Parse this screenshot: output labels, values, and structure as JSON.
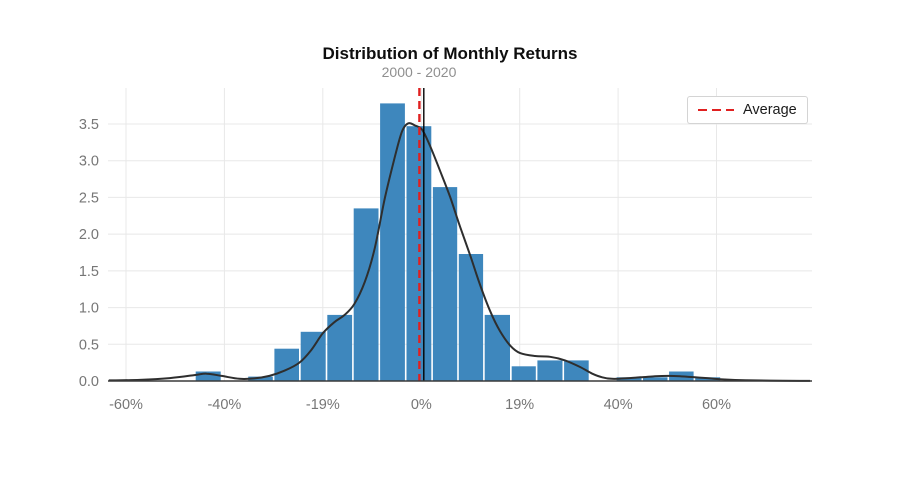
{
  "chart_data": {
    "type": "bar",
    "subtype": "histogram_with_kde",
    "title": "Distribution of Monthly Returns",
    "subtitle": "2000 - 2020",
    "xlabel": "",
    "ylabel": "",
    "grid": true,
    "ylim": [
      0,
      3.95
    ],
    "x_axis": {
      "tick_values": [
        -60,
        -40,
        -19,
        0,
        19,
        40,
        60
      ],
      "tick_labels": [
        "-60%",
        "-40%",
        "-19%",
        "0%",
        "19%",
        "40%",
        "60%"
      ]
    },
    "y_axis": {
      "tick_values": [
        0,
        0.5,
        1,
        1.5,
        2,
        2.5,
        3,
        3.5
      ],
      "tick_labels": [
        "0.0",
        "0.5",
        "1.0",
        "1.5",
        "2.0",
        "2.5",
        "3.0",
        "3.5"
      ]
    },
    "legend": {
      "position": "upper-right",
      "entries": [
        {
          "label": "Average",
          "style": "dashed",
          "color": "#e02020"
        }
      ]
    },
    "bars": {
      "color": "#3e87bd",
      "bins": [
        {
          "from": -46.0,
          "to": -40.6,
          "height": 0.13
        },
        {
          "from": -35.1,
          "to": -29.5,
          "height": 0.06
        },
        {
          "from": -29.5,
          "to": -23.9,
          "height": 0.44
        },
        {
          "from": -23.9,
          "to": -18.3,
          "height": 0.67
        },
        {
          "from": -18.3,
          "to": -13.2,
          "height": 0.9
        },
        {
          "from": -13.2,
          "to": -8.1,
          "height": 2.35
        },
        {
          "from": -8.1,
          "to": -3.0,
          "height": 3.78
        },
        {
          "from": -3.0,
          "to": 2.1,
          "height": 3.47
        },
        {
          "from": 2.1,
          "to": 7.1,
          "height": 2.64
        },
        {
          "from": 7.1,
          "to": 12.1,
          "height": 1.73
        },
        {
          "from": 12.1,
          "to": 17.3,
          "height": 0.9
        },
        {
          "from": 17.3,
          "to": 22.6,
          "height": 0.2
        },
        {
          "from": 22.6,
          "to": 28.3,
          "height": 0.28
        },
        {
          "from": 28.3,
          "to": 33.9,
          "height": 0.28
        },
        {
          "from": 39.5,
          "to": 44.9,
          "height": 0.05
        },
        {
          "from": 44.9,
          "to": 50.2,
          "height": 0.05
        },
        {
          "from": 50.2,
          "to": 55.5,
          "height": 0.13
        },
        {
          "from": 55.5,
          "to": 60.9,
          "height": 0.05
        }
      ]
    },
    "kde_curve": {
      "color": "#2e2e2e",
      "points": [
        [
          -63.5,
          0.008
        ],
        [
          -57.2,
          0.015
        ],
        [
          -51.1,
          0.04
        ],
        [
          -46.1,
          0.08
        ],
        [
          -43.6,
          0.1
        ],
        [
          -40.6,
          0.07
        ],
        [
          -36.8,
          0.03
        ],
        [
          -33.6,
          0.035
        ],
        [
          -30.4,
          0.07
        ],
        [
          -27.2,
          0.14
        ],
        [
          -24.0,
          0.25
        ],
        [
          -21.5,
          0.42
        ],
        [
          -19.0,
          0.65
        ],
        [
          -16.8,
          0.8
        ],
        [
          -14.8,
          0.9
        ],
        [
          -12.9,
          1.05
        ],
        [
          -10.9,
          1.35
        ],
        [
          -9.0,
          1.8
        ],
        [
          -7.0,
          2.5
        ],
        [
          -5.1,
          3.05
        ],
        [
          -3.7,
          3.4
        ],
        [
          -2.5,
          3.51
        ],
        [
          -1.2,
          3.48
        ],
        [
          0.2,
          3.42
        ],
        [
          1.7,
          3.2
        ],
        [
          3.7,
          2.85
        ],
        [
          5.6,
          2.5
        ],
        [
          7.5,
          2.1
        ],
        [
          9.5,
          1.7
        ],
        [
          11.4,
          1.3
        ],
        [
          13.3,
          0.95
        ],
        [
          15.2,
          0.68
        ],
        [
          17.2,
          0.48
        ],
        [
          19.1,
          0.38
        ],
        [
          22.3,
          0.34
        ],
        [
          25.5,
          0.33
        ],
        [
          28.7,
          0.28
        ],
        [
          31.9,
          0.19
        ],
        [
          34.5,
          0.1
        ],
        [
          36.6,
          0.05
        ],
        [
          38.7,
          0.03
        ],
        [
          41.4,
          0.035
        ],
        [
          44.5,
          0.05
        ],
        [
          47.5,
          0.065
        ],
        [
          50.2,
          0.07
        ],
        [
          52.6,
          0.065
        ],
        [
          55.6,
          0.05
        ],
        [
          58.7,
          0.035
        ],
        [
          61.7,
          0.02
        ],
        [
          65.8,
          0.01
        ],
        [
          70.8,
          0.005
        ],
        [
          76.9,
          0.002
        ],
        [
          79.0,
          0.002
        ]
      ]
    },
    "vlines": [
      {
        "name": "average",
        "x": -0.35,
        "style": "dashed",
        "color": "#e02020"
      },
      {
        "name": "zero-reference",
        "x": 0.5,
        "style": "solid",
        "color": "#000000"
      }
    ]
  }
}
